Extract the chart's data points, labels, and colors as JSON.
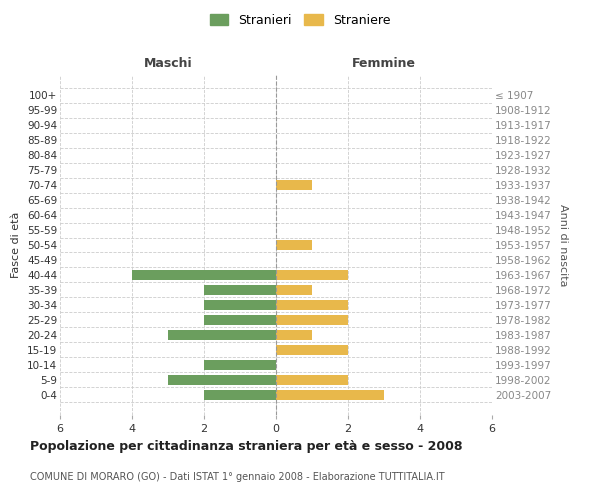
{
  "age_groups": [
    "100+",
    "95-99",
    "90-94",
    "85-89",
    "80-84",
    "75-79",
    "70-74",
    "65-69",
    "60-64",
    "55-59",
    "50-54",
    "45-49",
    "40-44",
    "35-39",
    "30-34",
    "25-29",
    "20-24",
    "15-19",
    "10-14",
    "5-9",
    "0-4"
  ],
  "birth_years": [
    "≤ 1907",
    "1908-1912",
    "1913-1917",
    "1918-1922",
    "1923-1927",
    "1928-1932",
    "1933-1937",
    "1938-1942",
    "1943-1947",
    "1948-1952",
    "1953-1957",
    "1958-1962",
    "1963-1967",
    "1968-1972",
    "1973-1977",
    "1978-1982",
    "1983-1987",
    "1988-1992",
    "1993-1997",
    "1998-2002",
    "2003-2007"
  ],
  "males": [
    0,
    0,
    0,
    0,
    0,
    0,
    0,
    0,
    0,
    0,
    0,
    0,
    4,
    2,
    2,
    2,
    3,
    0,
    2,
    3,
    2
  ],
  "females": [
    0,
    0,
    0,
    0,
    0,
    0,
    1,
    0,
    0,
    0,
    1,
    0,
    2,
    1,
    2,
    2,
    1,
    2,
    0,
    2,
    3
  ],
  "male_color": "#6b9e5e",
  "female_color": "#e8b84b",
  "title": "Popolazione per cittadinanza straniera per età e sesso - 2008",
  "subtitle": "COMUNE DI MORARO (GO) - Dati ISTAT 1° gennaio 2008 - Elaborazione TUTTITALIA.IT",
  "xlabel_left": "Maschi",
  "xlabel_right": "Femmine",
  "ylabel_left": "Fasce di età",
  "ylabel_right": "Anni di nascita",
  "legend_male": "Stranieri",
  "legend_female": "Straniere",
  "xlim": 6,
  "background_color": "#ffffff",
  "grid_color": "#cccccc"
}
